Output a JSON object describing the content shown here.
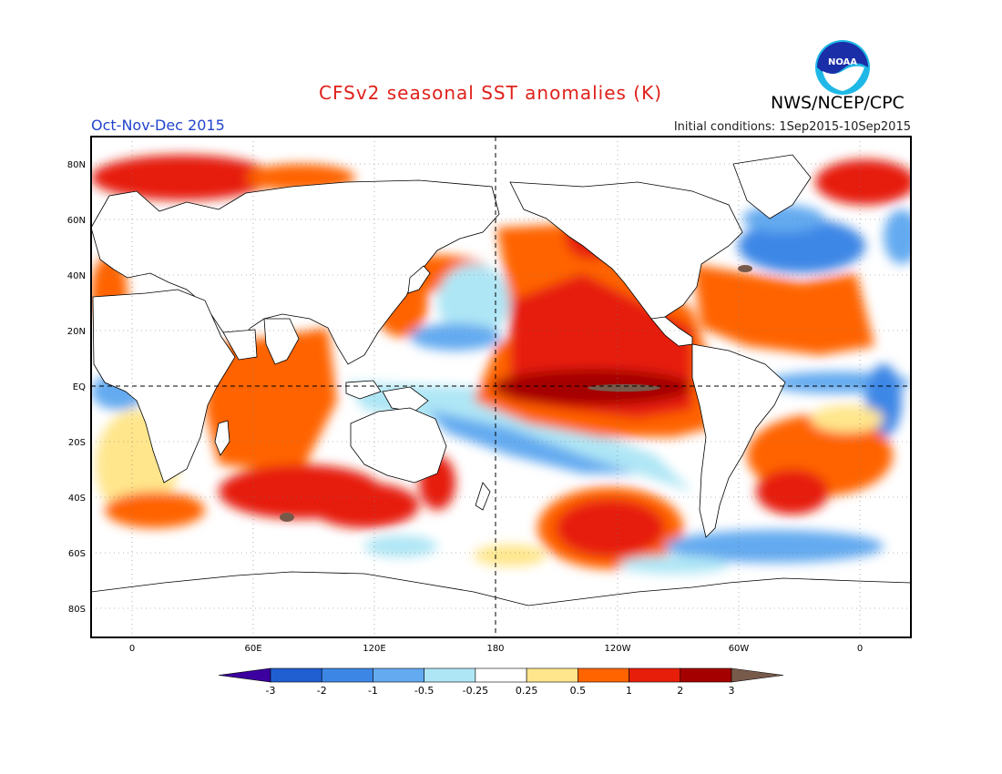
{
  "header": {
    "title": "CFSv2 seasonal SST anomalies (K)",
    "organization": "NWS/NCEP/CPC",
    "logo_text": "NOAA",
    "period": "Oct-Nov-Dec 2015",
    "initial_conditions": "Initial conditions: 1Sep2015-10Sep2015"
  },
  "map": {
    "lat_labels": [
      "80N",
      "60N",
      "40N",
      "20N",
      "EQ",
      "20S",
      "40S",
      "60S",
      "80S"
    ],
    "lon_labels": [
      "0",
      "60E",
      "120E",
      "180",
      "120W",
      "60W",
      "0"
    ]
  },
  "legend": {
    "labels": [
      "-3",
      "-2",
      "-1",
      "-0.5",
      "-0.25",
      "0.25",
      "0.5",
      "1",
      "2",
      "3"
    ],
    "colors": [
      "#3c00a0",
      "#1f5fd2",
      "#3c87e6",
      "#64aaf0",
      "#afe6f5",
      "#ffffff",
      "#ffe68c",
      "#ff6400",
      "#e61e0a",
      "#a50000",
      "#785a4b"
    ]
  },
  "colors": {
    "warm_1": "#ff6400",
    "warm_2": "#e61e0a",
    "warm_3": "#a50000",
    "extreme_warm": "#785a4b",
    "cool_1": "#64aaf0",
    "cool_2": "#3c87e6",
    "cool_3": "#1f5fd2",
    "light_cool": "#afe6f5",
    "light_warm": "#ffe68c",
    "title_red": "#e0201a",
    "period_blue": "#2244cc"
  }
}
